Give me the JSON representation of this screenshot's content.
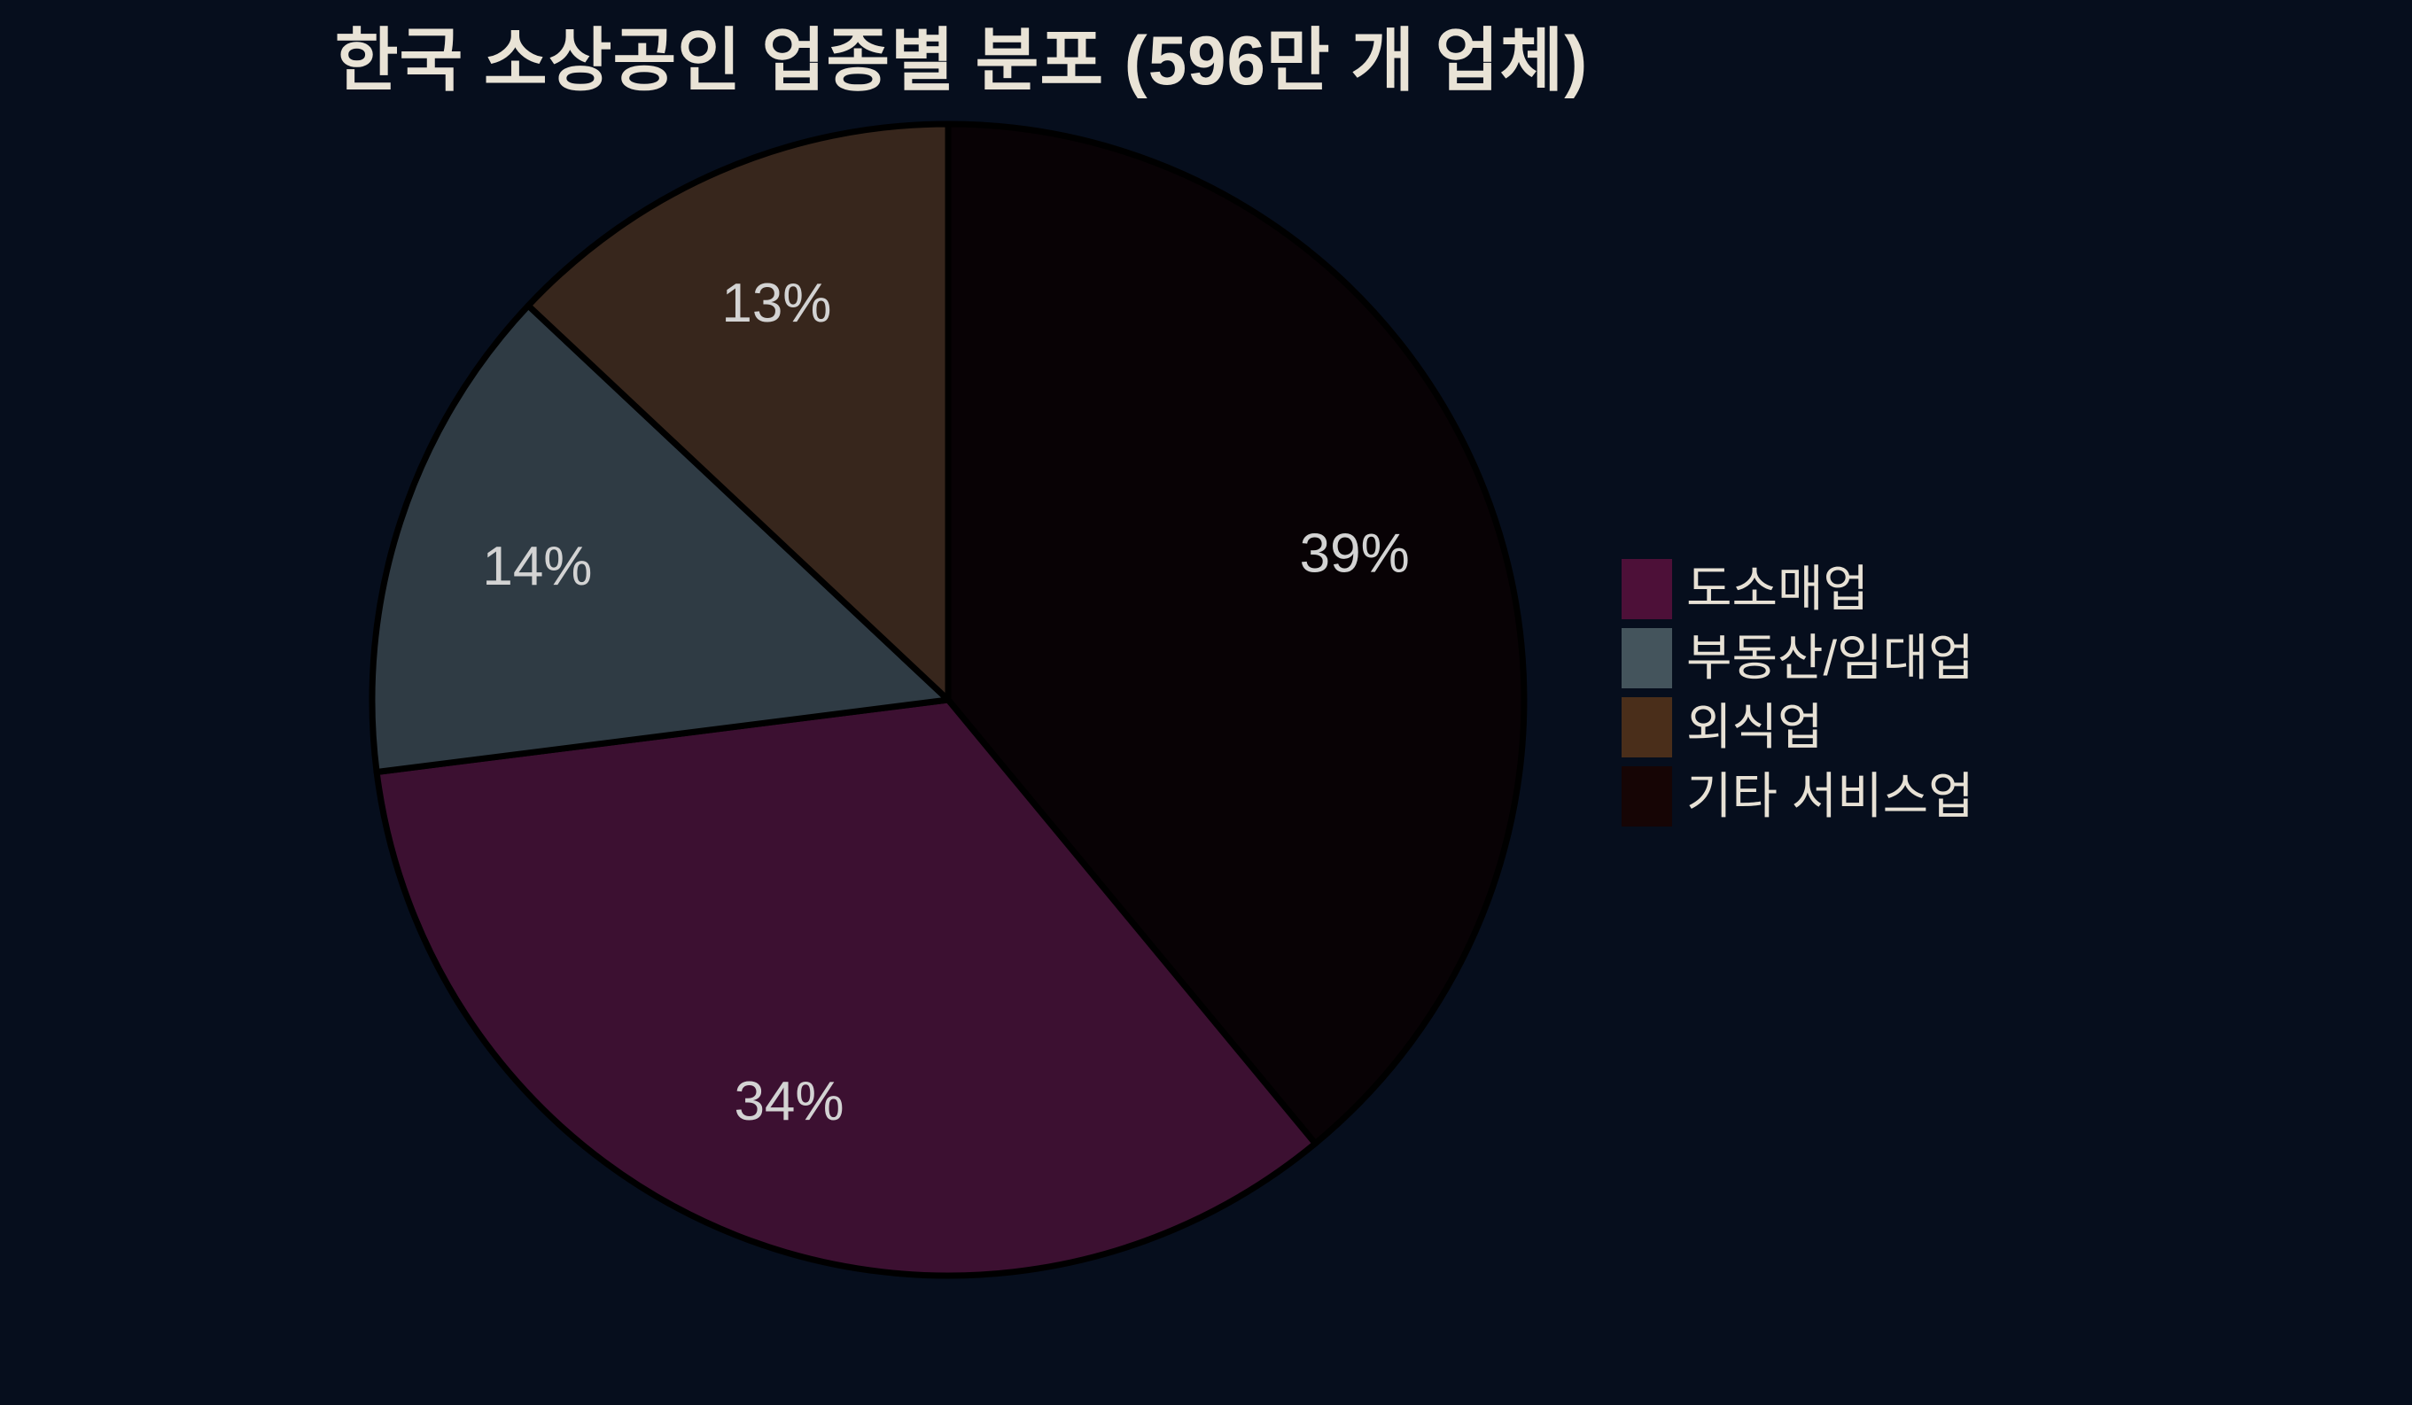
{
  "chart_data": {
    "type": "pie",
    "title": "한국 소상공인 업종별 분포 (596만 개 업체)",
    "slices": [
      {
        "name": "wholesale-retail",
        "label": "도소매업",
        "value": 34,
        "pct_text": "34%",
        "color": "#3c1031",
        "legend_color": "#4d1038"
      },
      {
        "name": "real-estate-rental",
        "label": "부동산/임대업",
        "value": 14,
        "pct_text": "14%",
        "color": "#2f3b44",
        "legend_color": "#44545c"
      },
      {
        "name": "food-service",
        "label": "외식업",
        "value": 13,
        "pct_text": "13%",
        "color": "#37261c",
        "legend_color": "#4a2e1a"
      },
      {
        "name": "other-services",
        "label": "기타 서비스업",
        "value": 39,
        "pct_text": "39%",
        "color": "#080205",
        "legend_color": "#160505"
      }
    ],
    "layout": {
      "start": "top",
      "direction": "clockwise",
      "sorted_descending": true,
      "label_format": "percent",
      "pct_distance": 0.75,
      "legend_position": "right",
      "background": "#060e1d",
      "wedge_edge_color": "#000000",
      "pct_label_color": "#d3d3d3",
      "title_color": "#e9e3d6",
      "legend_text_color": "#e7e1d5"
    }
  }
}
